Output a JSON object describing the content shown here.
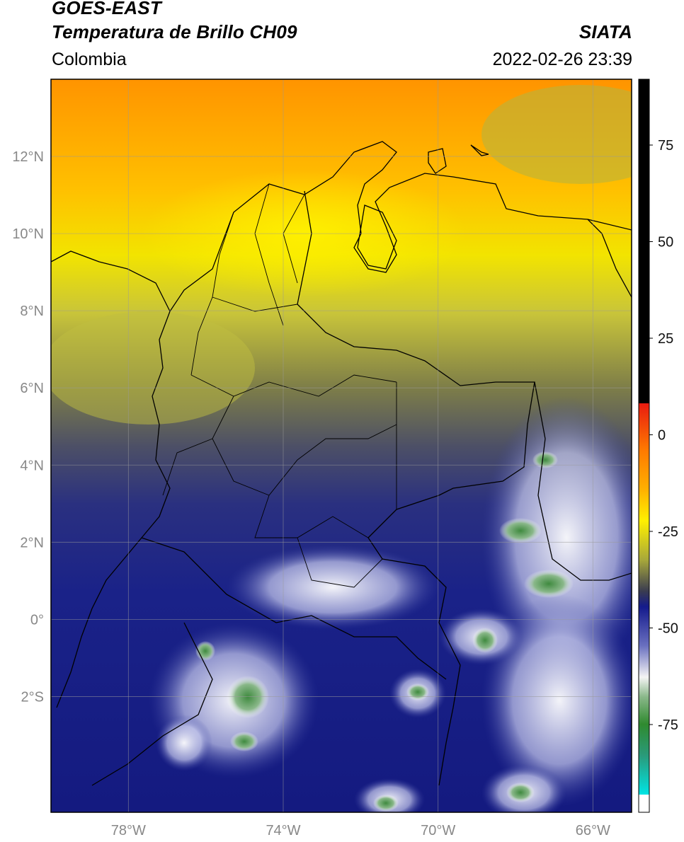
{
  "header": {
    "satellite": "GOES-EAST",
    "product": "Temperatura de Brillo CH09",
    "region": "Colombia",
    "brand": "SIATA",
    "datetime": "2022-02-26 23:39"
  },
  "map": {
    "lon_range": [
      -80,
      -65
    ],
    "lat_range": [
      -5,
      14
    ],
    "lat_ticks": [
      {
        "value": 12,
        "label": "12°N"
      },
      {
        "value": 10,
        "label": "10°N"
      },
      {
        "value": 8,
        "label": "8°N"
      },
      {
        "value": 6,
        "label": "6°N"
      },
      {
        "value": 4,
        "label": "4°N"
      },
      {
        "value": 2,
        "label": "2°N"
      },
      {
        "value": 0,
        "label": "0°"
      },
      {
        "value": -2,
        "label": "2°S"
      }
    ],
    "lon_ticks": [
      {
        "value": -78,
        "label": "78°W"
      },
      {
        "value": -74,
        "label": "74°W"
      },
      {
        "value": -70,
        "label": "70°W"
      },
      {
        "value": -66,
        "label": "66°W"
      }
    ],
    "gridlines": true
  },
  "colorbar": {
    "ticks": [
      {
        "value": 75,
        "label": "75"
      },
      {
        "value": 50,
        "label": "50"
      },
      {
        "value": 25,
        "label": "25"
      },
      {
        "value": 0,
        "label": "0"
      },
      {
        "value": -25,
        "label": "-25"
      },
      {
        "value": -50,
        "label": "-50"
      },
      {
        "value": -75,
        "label": "-75"
      }
    ],
    "colors": {
      "warm": "#e8281a",
      "orange": "#ff9a00",
      "yellow": "#fff200",
      "olive": "#8a8a3a",
      "navy": "#141a8c",
      "white": "#ffffff",
      "green": "#2f8a2f",
      "cyan": "#00e0e0",
      "saturated": "#000000"
    }
  }
}
